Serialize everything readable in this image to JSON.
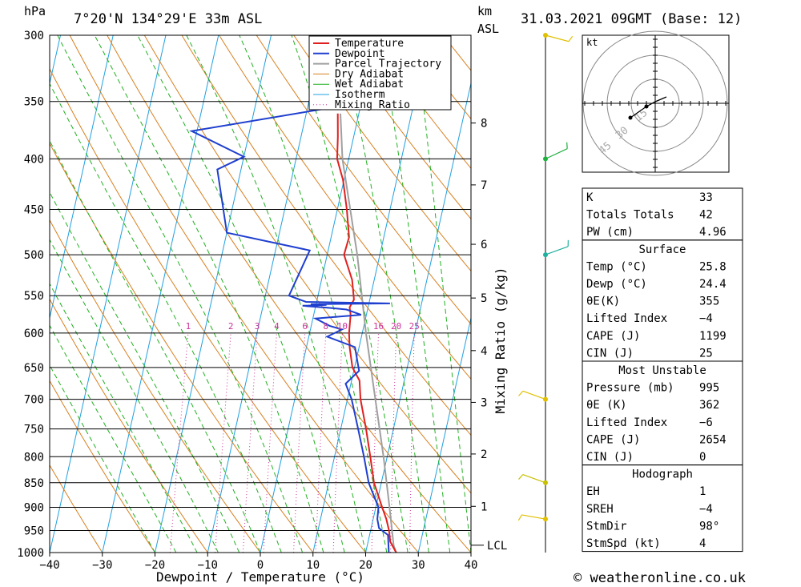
{
  "header": {
    "location": "7°20'N  134°29'E  33m  ASL",
    "datetime": "31.03.2021  09GMT  (Base: 12)",
    "pressure_unit": "hPa",
    "km_unit": "km",
    "asl_unit": "ASL"
  },
  "footer": {
    "credit": "© weatheronline.co.uk"
  },
  "colors": {
    "temperature": "#e02020",
    "dewpoint": "#1f3fcf",
    "parcel": "#a0a0a0",
    "dry_adiabat": "#d88020",
    "wet_adiabat": "#20b020",
    "isotherm": "#20a0e0",
    "mixing_ratio": "#cc3399"
  },
  "chart_data": {
    "type": "line",
    "xlabel": "Dewpoint / Temperature (°C)",
    "ylabel_right": "Mixing Ratio (g/kg)",
    "x_ticks": [
      -40,
      -30,
      -20,
      -10,
      0,
      10,
      20,
      30,
      40
    ],
    "xlim": [
      -40,
      40
    ],
    "pressure_levels": [
      300,
      350,
      400,
      450,
      500,
      550,
      600,
      650,
      700,
      750,
      800,
      850,
      900,
      950,
      1000
    ],
    "ylim_hpa": [
      1000,
      300
    ],
    "y_scale": "log",
    "km_ticks": [
      {
        "km": "1",
        "hpa": 898
      },
      {
        "km": "2",
        "hpa": 795
      },
      {
        "km": "3",
        "hpa": 705
      },
      {
        "km": "4",
        "hpa": 625
      },
      {
        "km": "5",
        "hpa": 553
      },
      {
        "km": "6",
        "hpa": 488
      },
      {
        "km": "7",
        "hpa": 425
      },
      {
        "km": "8",
        "hpa": 368
      }
    ],
    "lcl_label": "LCL",
    "lcl_hpa": 983,
    "mixing_ratio_labels": [
      "1",
      "2",
      "3",
      "4",
      "6",
      "8",
      "10",
      "16",
      "20",
      "25"
    ],
    "legend": [
      "Temperature",
      "Dewpoint",
      "Parcel Trajectory",
      "Dry Adiabat",
      "Wet Adiabat",
      "Isotherm",
      "Mixing Ratio"
    ],
    "series": [
      {
        "name": "Temperature",
        "points": [
          [
            1000,
            25.8
          ],
          [
            975,
            24.2
          ],
          [
            950,
            23.5
          ],
          [
            925,
            22.5
          ],
          [
            900,
            21.2
          ],
          [
            850,
            18.6
          ],
          [
            800,
            16.8
          ],
          [
            750,
            14.8
          ],
          [
            700,
            12.5
          ],
          [
            670,
            11.5
          ],
          [
            650,
            9.6
          ],
          [
            620,
            8.2
          ],
          [
            600,
            7.5
          ],
          [
            575,
            7.0
          ],
          [
            565,
            6.5
          ],
          [
            555,
            7.0
          ],
          [
            530,
            5.8
          ],
          [
            500,
            3.2
          ],
          [
            480,
            3.4
          ],
          [
            450,
            1.8
          ],
          [
            420,
            -0.2
          ],
          [
            400,
            -2.2
          ],
          [
            380,
            -3.0
          ],
          [
            360,
            -4.0
          ]
        ]
      },
      {
        "name": "Dewpoint",
        "points": [
          [
            1000,
            24.4
          ],
          [
            960,
            23.5
          ],
          [
            945,
            21.5
          ],
          [
            925,
            20.8
          ],
          [
            900,
            20.5
          ],
          [
            850,
            17.6
          ],
          [
            800,
            15.6
          ],
          [
            750,
            13.3
          ],
          [
            700,
            10.8
          ],
          [
            675,
            9.0
          ],
          [
            655,
            11.0
          ],
          [
            620,
            9.2
          ],
          [
            605,
            3.5
          ],
          [
            595,
            6.0
          ],
          [
            590,
            3.5
          ],
          [
            580,
            0.5
          ],
          [
            575,
            9.0
          ],
          [
            568,
            6.0
          ],
          [
            566,
            3.0
          ],
          [
            563,
            -2.5
          ],
          [
            562,
            2.0
          ],
          [
            561,
            -1.0
          ],
          [
            560,
            14.0
          ],
          [
            558,
            -2.0
          ],
          [
            550,
            -5.5
          ],
          [
            495,
            -3.5
          ],
          [
            475,
            -20.0
          ],
          [
            410,
            -24.5
          ],
          [
            398,
            -20.0
          ],
          [
            375,
            -31.0
          ],
          [
            352,
            -1.5
          ],
          [
            340,
            -8.0
          ],
          [
            300,
            -8.0
          ]
        ]
      },
      {
        "name": "Parcel Trajectory",
        "points": [
          [
            1000,
            25.8
          ],
          [
            983,
            25.0
          ],
          [
            900,
            22.6
          ],
          [
            800,
            19.3
          ],
          [
            700,
            15.3
          ],
          [
            600,
            10.7
          ],
          [
            500,
            5.7
          ],
          [
            400,
            -1.2
          ],
          [
            360,
            -3.5
          ]
        ]
      }
    ]
  },
  "hodograph": {
    "unit": "kt",
    "ring_labels": [
      "15",
      "30",
      "45"
    ]
  },
  "indices": {
    "top": [
      {
        "label": "K",
        "value": "33"
      },
      {
        "label": "Totals Totals",
        "value": "42"
      },
      {
        "label": "PW (cm)",
        "value": "4.96"
      }
    ],
    "surface": {
      "title": "Surface",
      "rows": [
        {
          "label": "Temp (°C)",
          "value": "25.8"
        },
        {
          "label": "Dewp (°C)",
          "value": "24.4"
        },
        {
          "label": "θE(K)",
          "value": "355"
        },
        {
          "label": "Lifted Index",
          "value": "−4"
        },
        {
          "label": "CAPE (J)",
          "value": "1199"
        },
        {
          "label": "CIN (J)",
          "value": "25"
        }
      ]
    },
    "most_unstable": {
      "title": "Most Unstable",
      "rows": [
        {
          "label": "Pressure (mb)",
          "value": "995"
        },
        {
          "label": "θE (K)",
          "value": "362"
        },
        {
          "label": "Lifted Index",
          "value": "−6"
        },
        {
          "label": "CAPE (J)",
          "value": "2654"
        },
        {
          "label": "CIN (J)",
          "value": "0"
        }
      ]
    },
    "hodograph_box": {
      "title": "Hodograph",
      "rows": [
        {
          "label": "EH",
          "value": "1"
        },
        {
          "label": "SREH",
          "value": "−4"
        },
        {
          "label": "StmDir",
          "value": "98°"
        },
        {
          "label": "StmSpd (kt)",
          "value": "4"
        }
      ]
    }
  }
}
